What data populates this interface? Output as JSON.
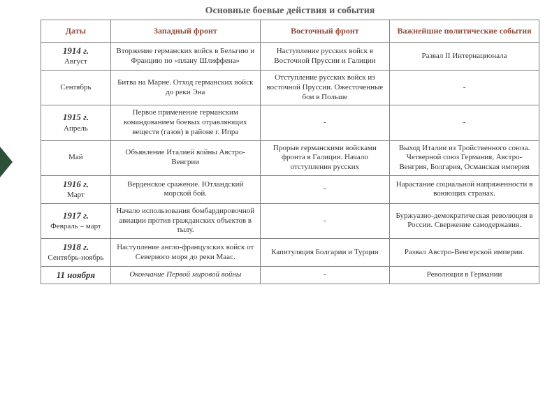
{
  "title": "Основные боевые действия и события",
  "columns": [
    "Даты",
    "Западный фронт",
    "Восточный фронт",
    "Важнейшие политические события"
  ],
  "rows": [
    {
      "date_main": "1914 г.",
      "date_sub": "Август",
      "west": "Вторжение германских войск в Бельгию и Францию по «плану Шлиффена»",
      "east": "Наступление русских войск в Восточной Пруссии и Галиции",
      "pol": "Развал II Интернационала"
    },
    {
      "date_main": "",
      "date_sub": "Сентябрь",
      "west": "Битва на Марне. Отход германских войск до реки Эна",
      "east": "Отступление русских войск из восточной Пруссии. Ожесточенные бои в Польше",
      "pol": "-"
    },
    {
      "date_main": "1915 г.",
      "date_sub": "Апрель",
      "west": "Первое применение германским командованием боевых отравляющих веществ (газов) в районе г. Ипра",
      "east": "-",
      "pol": "-"
    },
    {
      "date_main": "",
      "date_sub": "Май",
      "west": "Объявление Италией войны Австро-Венгрии",
      "east": "Прорыв германскими войсками фронта в Галиции. Начало отступления русских",
      "pol": "Выход Италии из Тройственного союза. Четверной союз Германия, Австро-Венгрия, Болгария, Османская империя"
    },
    {
      "date_main": "1916 г.",
      "date_sub": "Март",
      "west": "Верденское сражение. Ютландский морской бой.",
      "east": "-",
      "pol": "Нарастание социальной напряженности в воюющих странах."
    },
    {
      "date_main": "1917 г.",
      "date_sub": "Февраль – март",
      "west": "Начало использования бомбардировочной авиации против гражданских объектов в тылу.",
      "east": "-",
      "pol": "Буржуазно-демократическая революция в России. Свержение самодержавия."
    },
    {
      "date_main": "1918 г.",
      "date_sub": "Сентябрь-ноябрь",
      "west": "Наступление англо-французских войск от Северного моря до реки Маас.",
      "east": "Капитуляция Болгарии и Турции",
      "pol": "Развал Австро-Венгерской империи."
    },
    {
      "date_main": "11 ноября",
      "date_sub": "",
      "west": "Окончание Первой мировой войны",
      "east": "-",
      "pol": "Революция в Германии",
      "west_italic": true
    }
  ],
  "colors": {
    "header_text": "#8f4a3a",
    "title_text": "#595959",
    "border": "#808080",
    "accent": "#2c5038"
  }
}
